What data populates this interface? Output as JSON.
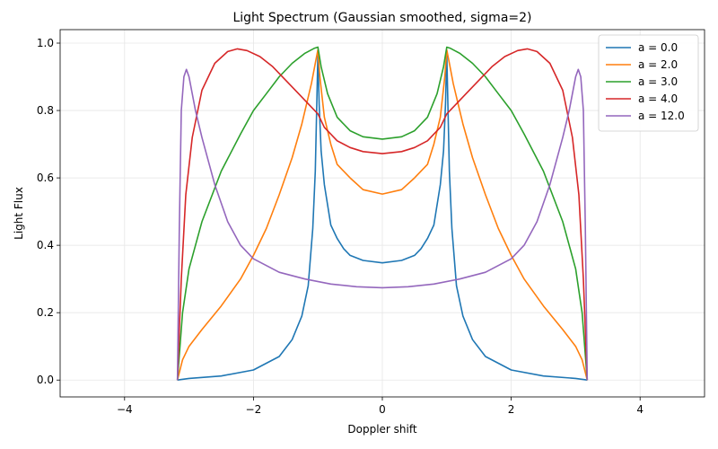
{
  "chart_data": {
    "type": "line",
    "title": "Light Spectrum (Gaussian smoothed, sigma=2)",
    "xlabel": "Doppler shift",
    "ylabel": "Light Flux",
    "xlim": [
      -5,
      5
    ],
    "ylim": [
      -0.05,
      1.04
    ],
    "xticks": [
      -4,
      -2,
      0,
      2,
      4
    ],
    "xtick_labels": [
      "−4",
      "−2",
      "0",
      "2",
      "4"
    ],
    "yticks": [
      0.0,
      0.2,
      0.4,
      0.6,
      0.8,
      1.0
    ],
    "ytick_labels": [
      "0.0",
      "0.2",
      "0.4",
      "0.6",
      "0.8",
      "1.0"
    ],
    "grid": true,
    "legend_position": "top-right",
    "x_extent": [
      -3.18,
      3.18
    ],
    "series": [
      {
        "name": "a = 0.0",
        "color": "#1f77b4",
        "x": [
          -3.18,
          -3.0,
          -2.5,
          -2.0,
          -1.6,
          -1.4,
          -1.25,
          -1.15,
          -1.08,
          -1.04,
          -1.02,
          -1.0,
          -0.98,
          -0.95,
          -0.9,
          -0.8,
          -0.7,
          -0.6,
          -0.5,
          -0.3,
          0.0,
          0.3,
          0.5,
          0.6,
          0.7,
          0.8,
          0.9,
          0.95,
          0.98,
          1.0,
          1.02,
          1.04,
          1.08,
          1.15,
          1.25,
          1.4,
          1.6,
          2.0,
          2.5,
          3.0,
          3.18
        ],
        "y": [
          0.0,
          0.005,
          0.012,
          0.03,
          0.07,
          0.12,
          0.19,
          0.28,
          0.45,
          0.62,
          0.8,
          0.97,
          0.82,
          0.68,
          0.58,
          0.46,
          0.42,
          0.39,
          0.37,
          0.355,
          0.348,
          0.355,
          0.37,
          0.39,
          0.42,
          0.46,
          0.58,
          0.68,
          0.82,
          0.97,
          0.8,
          0.62,
          0.45,
          0.28,
          0.19,
          0.12,
          0.07,
          0.03,
          0.012,
          0.005,
          0.0
        ]
      },
      {
        "name": "a = 2.0",
        "color": "#ff7f0e",
        "x": [
          -3.18,
          -3.1,
          -3.0,
          -2.8,
          -2.5,
          -2.2,
          -2.0,
          -1.8,
          -1.6,
          -1.4,
          -1.25,
          -1.1,
          -1.03,
          -1.0,
          -0.97,
          -0.9,
          -0.8,
          -0.7,
          -0.5,
          -0.3,
          0.0,
          0.3,
          0.5,
          0.7,
          0.8,
          0.9,
          0.97,
          1.0,
          1.03,
          1.1,
          1.25,
          1.4,
          1.6,
          1.8,
          2.0,
          2.2,
          2.5,
          2.8,
          3.0,
          3.1,
          3.18
        ],
        "y": [
          0.0,
          0.06,
          0.1,
          0.15,
          0.22,
          0.3,
          0.37,
          0.45,
          0.55,
          0.66,
          0.76,
          0.88,
          0.95,
          0.98,
          0.9,
          0.78,
          0.7,
          0.64,
          0.6,
          0.565,
          0.552,
          0.565,
          0.6,
          0.64,
          0.7,
          0.78,
          0.9,
          0.98,
          0.95,
          0.88,
          0.76,
          0.66,
          0.55,
          0.45,
          0.37,
          0.3,
          0.22,
          0.15,
          0.1,
          0.06,
          0.0
        ]
      },
      {
        "name": "a = 3.0",
        "color": "#2ca02c",
        "x": [
          -3.18,
          -3.1,
          -3.0,
          -2.8,
          -2.5,
          -2.2,
          -2.0,
          -1.8,
          -1.6,
          -1.4,
          -1.2,
          -1.05,
          -1.0,
          -0.95,
          -0.85,
          -0.7,
          -0.5,
          -0.3,
          0.0,
          0.3,
          0.5,
          0.7,
          0.85,
          0.95,
          1.0,
          1.05,
          1.2,
          1.4,
          1.6,
          1.8,
          2.0,
          2.2,
          2.5,
          2.8,
          3.0,
          3.1,
          3.18
        ],
        "y": [
          0.0,
          0.2,
          0.33,
          0.47,
          0.62,
          0.73,
          0.8,
          0.85,
          0.9,
          0.94,
          0.97,
          0.985,
          0.988,
          0.93,
          0.85,
          0.78,
          0.74,
          0.722,
          0.715,
          0.722,
          0.74,
          0.78,
          0.85,
          0.93,
          0.988,
          0.985,
          0.97,
          0.94,
          0.9,
          0.85,
          0.8,
          0.73,
          0.62,
          0.47,
          0.33,
          0.2,
          0.0
        ]
      },
      {
        "name": "a = 4.0",
        "color": "#d62728",
        "x": [
          -3.18,
          -3.12,
          -3.05,
          -2.95,
          -2.8,
          -2.6,
          -2.4,
          -2.25,
          -2.1,
          -1.9,
          -1.7,
          -1.5,
          -1.3,
          -1.1,
          -1.0,
          -0.9,
          -0.7,
          -0.5,
          -0.3,
          0.0,
          0.3,
          0.5,
          0.7,
          0.9,
          1.0,
          1.1,
          1.3,
          1.5,
          1.7,
          1.9,
          2.1,
          2.25,
          2.4,
          2.6,
          2.8,
          2.95,
          3.05,
          3.12,
          3.18
        ],
        "y": [
          0.0,
          0.3,
          0.55,
          0.72,
          0.86,
          0.94,
          0.975,
          0.983,
          0.978,
          0.96,
          0.93,
          0.89,
          0.85,
          0.81,
          0.79,
          0.75,
          0.71,
          0.69,
          0.678,
          0.672,
          0.678,
          0.69,
          0.71,
          0.75,
          0.79,
          0.81,
          0.85,
          0.89,
          0.93,
          0.96,
          0.978,
          0.983,
          0.975,
          0.94,
          0.86,
          0.72,
          0.55,
          0.3,
          0.0
        ]
      },
      {
        "name": "a = 12.0",
        "color": "#9467bd",
        "x": [
          -3.18,
          -3.15,
          -3.12,
          -3.08,
          -3.04,
          -3.0,
          -2.95,
          -2.9,
          -2.8,
          -2.6,
          -2.4,
          -2.2,
          -2.0,
          -1.6,
          -1.2,
          -0.8,
          -0.4,
          0.0,
          0.4,
          0.8,
          1.2,
          1.6,
          2.0,
          2.2,
          2.4,
          2.6,
          2.8,
          2.9,
          2.95,
          3.0,
          3.04,
          3.08,
          3.12,
          3.15,
          3.18
        ],
        "y": [
          0.0,
          0.45,
          0.8,
          0.9,
          0.922,
          0.9,
          0.85,
          0.8,
          0.72,
          0.58,
          0.47,
          0.4,
          0.36,
          0.32,
          0.3,
          0.285,
          0.277,
          0.274,
          0.277,
          0.285,
          0.3,
          0.32,
          0.36,
          0.4,
          0.47,
          0.58,
          0.72,
          0.8,
          0.85,
          0.9,
          0.922,
          0.9,
          0.8,
          0.45,
          0.0
        ]
      }
    ]
  }
}
